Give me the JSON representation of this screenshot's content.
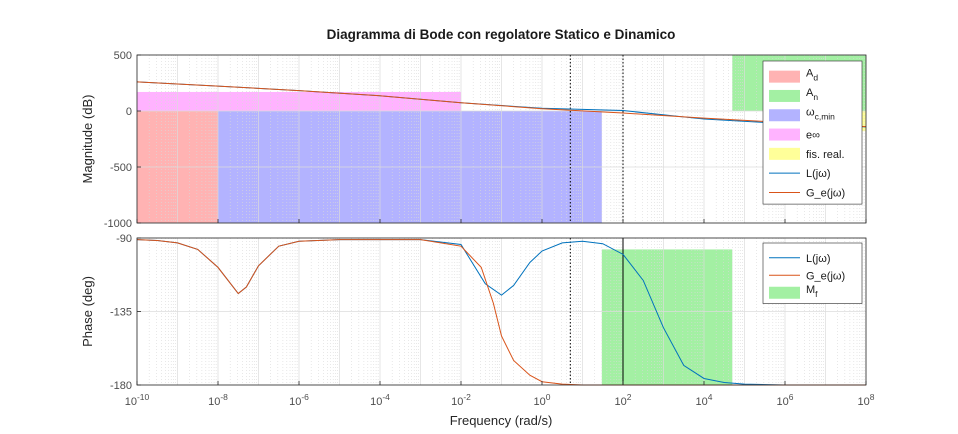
{
  "chart_data": {
    "type": "line",
    "title": "Diagramma di Bode con regolatore Statico e Dinamico",
    "xlabel": "Frequency  (rad/s)",
    "x_scale": "log",
    "xlim": [
      1e-10,
      100000000.0
    ],
    "x_ticks": [
      {
        "value": 1e-10,
        "base": "10",
        "exp": "-10"
      },
      {
        "value": 1e-08,
        "base": "10",
        "exp": "-8"
      },
      {
        "value": 1e-06,
        "base": "10",
        "exp": "-6"
      },
      {
        "value": 0.0001,
        "base": "10",
        "exp": "-4"
      },
      {
        "value": 0.01,
        "base": "10",
        "exp": "-2"
      },
      {
        "value": 1,
        "base": "10",
        "exp": "0"
      },
      {
        "value": 100,
        "base": "10",
        "exp": "2"
      },
      {
        "value": 10000.0,
        "base": "10",
        "exp": "4"
      },
      {
        "value": 1000000.0,
        "base": "10",
        "exp": "6"
      },
      {
        "value": 100000000.0,
        "base": "10",
        "exp": "8"
      }
    ],
    "grid": true,
    "colors": {
      "L": "#0072BD",
      "Ge": "#D95319",
      "Ad": "#ffb3b3",
      "An": "#a3f0a3",
      "wc": "#b3b3ff",
      "einf": "#ffb3ff",
      "fis": "#ffff99",
      "Mf": "#a3f0a3"
    },
    "magnitude": {
      "ylabel": "Magnitude (dB)",
      "ylim": [
        -1000,
        500
      ],
      "yticks": [
        "500",
        "0",
        "-500",
        "-1000"
      ],
      "ytick_values": [
        500,
        0,
        -500,
        -1000
      ],
      "regions": [
        {
          "key": "Ad",
          "x": [
            1e-10,
            1e-08
          ],
          "y": [
            -1000,
            0
          ]
        },
        {
          "key": "wc",
          "x": [
            1e-08,
            30
          ],
          "y": [
            -1000,
            0
          ]
        },
        {
          "key": "einf",
          "x": [
            1e-10,
            0.01
          ],
          "y": [
            0,
            170
          ]
        },
        {
          "key": "An",
          "x": [
            50000,
            100000000.0
          ],
          "y": [
            0,
            500
          ]
        },
        {
          "key": "fis",
          "x": [
            10000000.0,
            100000000.0
          ],
          "y": [
            -180,
            0
          ]
        }
      ],
      "crossover_lines": [
        5,
        100
      ],
      "series": [
        {
          "key": "L",
          "x_log10": [
            -10,
            -8,
            -6,
            -4,
            -2,
            0,
            2,
            4,
            6,
            8
          ],
          "y": [
            260,
            222,
            182,
            136,
            74,
            24,
            4,
            -72,
            -112,
            -142
          ]
        },
        {
          "key": "Ge",
          "x_log10": [
            -10,
            -8,
            -6,
            -4,
            -2,
            0,
            2,
            4,
            6,
            8
          ],
          "y": [
            260,
            222,
            182,
            136,
            74,
            20,
            -18,
            -64,
            -104,
            -140
          ]
        }
      ],
      "legend": {
        "position": "right",
        "entries": [
          {
            "key": "Ad",
            "label": "A",
            "sub": "d",
            "kind": "patch"
          },
          {
            "key": "An",
            "label": "A",
            "sub": "n",
            "kind": "patch"
          },
          {
            "key": "wc",
            "label": "ω",
            "sub": "c,min",
            "kind": "patch"
          },
          {
            "key": "einf",
            "label": "e∞",
            "sub": "",
            "kind": "patch"
          },
          {
            "key": "fis",
            "label": "fis. real.",
            "sub": "",
            "kind": "patch"
          },
          {
            "key": "L",
            "label": "L(jω)",
            "sub": "",
            "kind": "line"
          },
          {
            "key": "Ge",
            "label": "G_e(jω)",
            "sub": "",
            "kind": "line"
          }
        ]
      }
    },
    "phase": {
      "ylabel": "Phase (deg)",
      "ylim": [
        -180,
        -90
      ],
      "yticks": [
        "-90",
        "-135",
        "-180"
      ],
      "ytick_values": [
        -90,
        -135,
        -180
      ],
      "regions": [
        {
          "key": "Mf",
          "x": [
            30,
            50000
          ],
          "y": [
            -180,
            -97
          ]
        }
      ],
      "crossover_lines": [
        5,
        100
      ],
      "series": [
        {
          "key": "L",
          "x_log10": [
            -10,
            -9.5,
            -9,
            -8.5,
            -8,
            -7.5,
            -7.3,
            -7,
            -6.5,
            -6,
            -5,
            -4,
            -3,
            -2,
            -1.4,
            -1,
            -0.7,
            -0.3,
            0,
            0.5,
            1,
            1.5,
            2,
            2.5,
            3,
            3.5,
            4,
            4.5,
            5,
            6,
            7,
            8
          ],
          "y": [
            -91,
            -91.5,
            -93,
            -97,
            -108,
            -124,
            -120,
            -107,
            -95,
            -92,
            -91,
            -91,
            -91,
            -94,
            -118,
            -125,
            -119,
            -105,
            -98,
            -93,
            -92,
            -93.5,
            -100,
            -116,
            -145,
            -168,
            -176,
            -178.5,
            -179.5,
            -180,
            -180,
            -180
          ]
        },
        {
          "key": "Ge",
          "x_log10": [
            -10,
            -9.5,
            -9,
            -8.5,
            -8,
            -7.5,
            -7.3,
            -7,
            -6.5,
            -6,
            -5,
            -4,
            -3,
            -2,
            -1.5,
            -1.2,
            -1,
            -0.7,
            -0.3,
            0,
            0.5,
            1,
            2,
            4,
            6,
            8
          ],
          "y": [
            -91,
            -91.5,
            -93,
            -97,
            -108,
            -124,
            -120,
            -107,
            -95,
            -92,
            -91,
            -91,
            -91,
            -95,
            -108,
            -130,
            -150,
            -165,
            -174,
            -178,
            -179.5,
            -180,
            -180,
            -180,
            -180,
            -180
          ]
        }
      ],
      "legend": {
        "position": "right",
        "entries": [
          {
            "key": "L",
            "label": "L(jω)",
            "sub": "",
            "kind": "line"
          },
          {
            "key": "Ge",
            "label": "G_e(jω)",
            "sub": "",
            "kind": "line"
          },
          {
            "key": "Mf",
            "label": "M",
            "sub": "f",
            "kind": "patch"
          }
        ]
      }
    }
  }
}
